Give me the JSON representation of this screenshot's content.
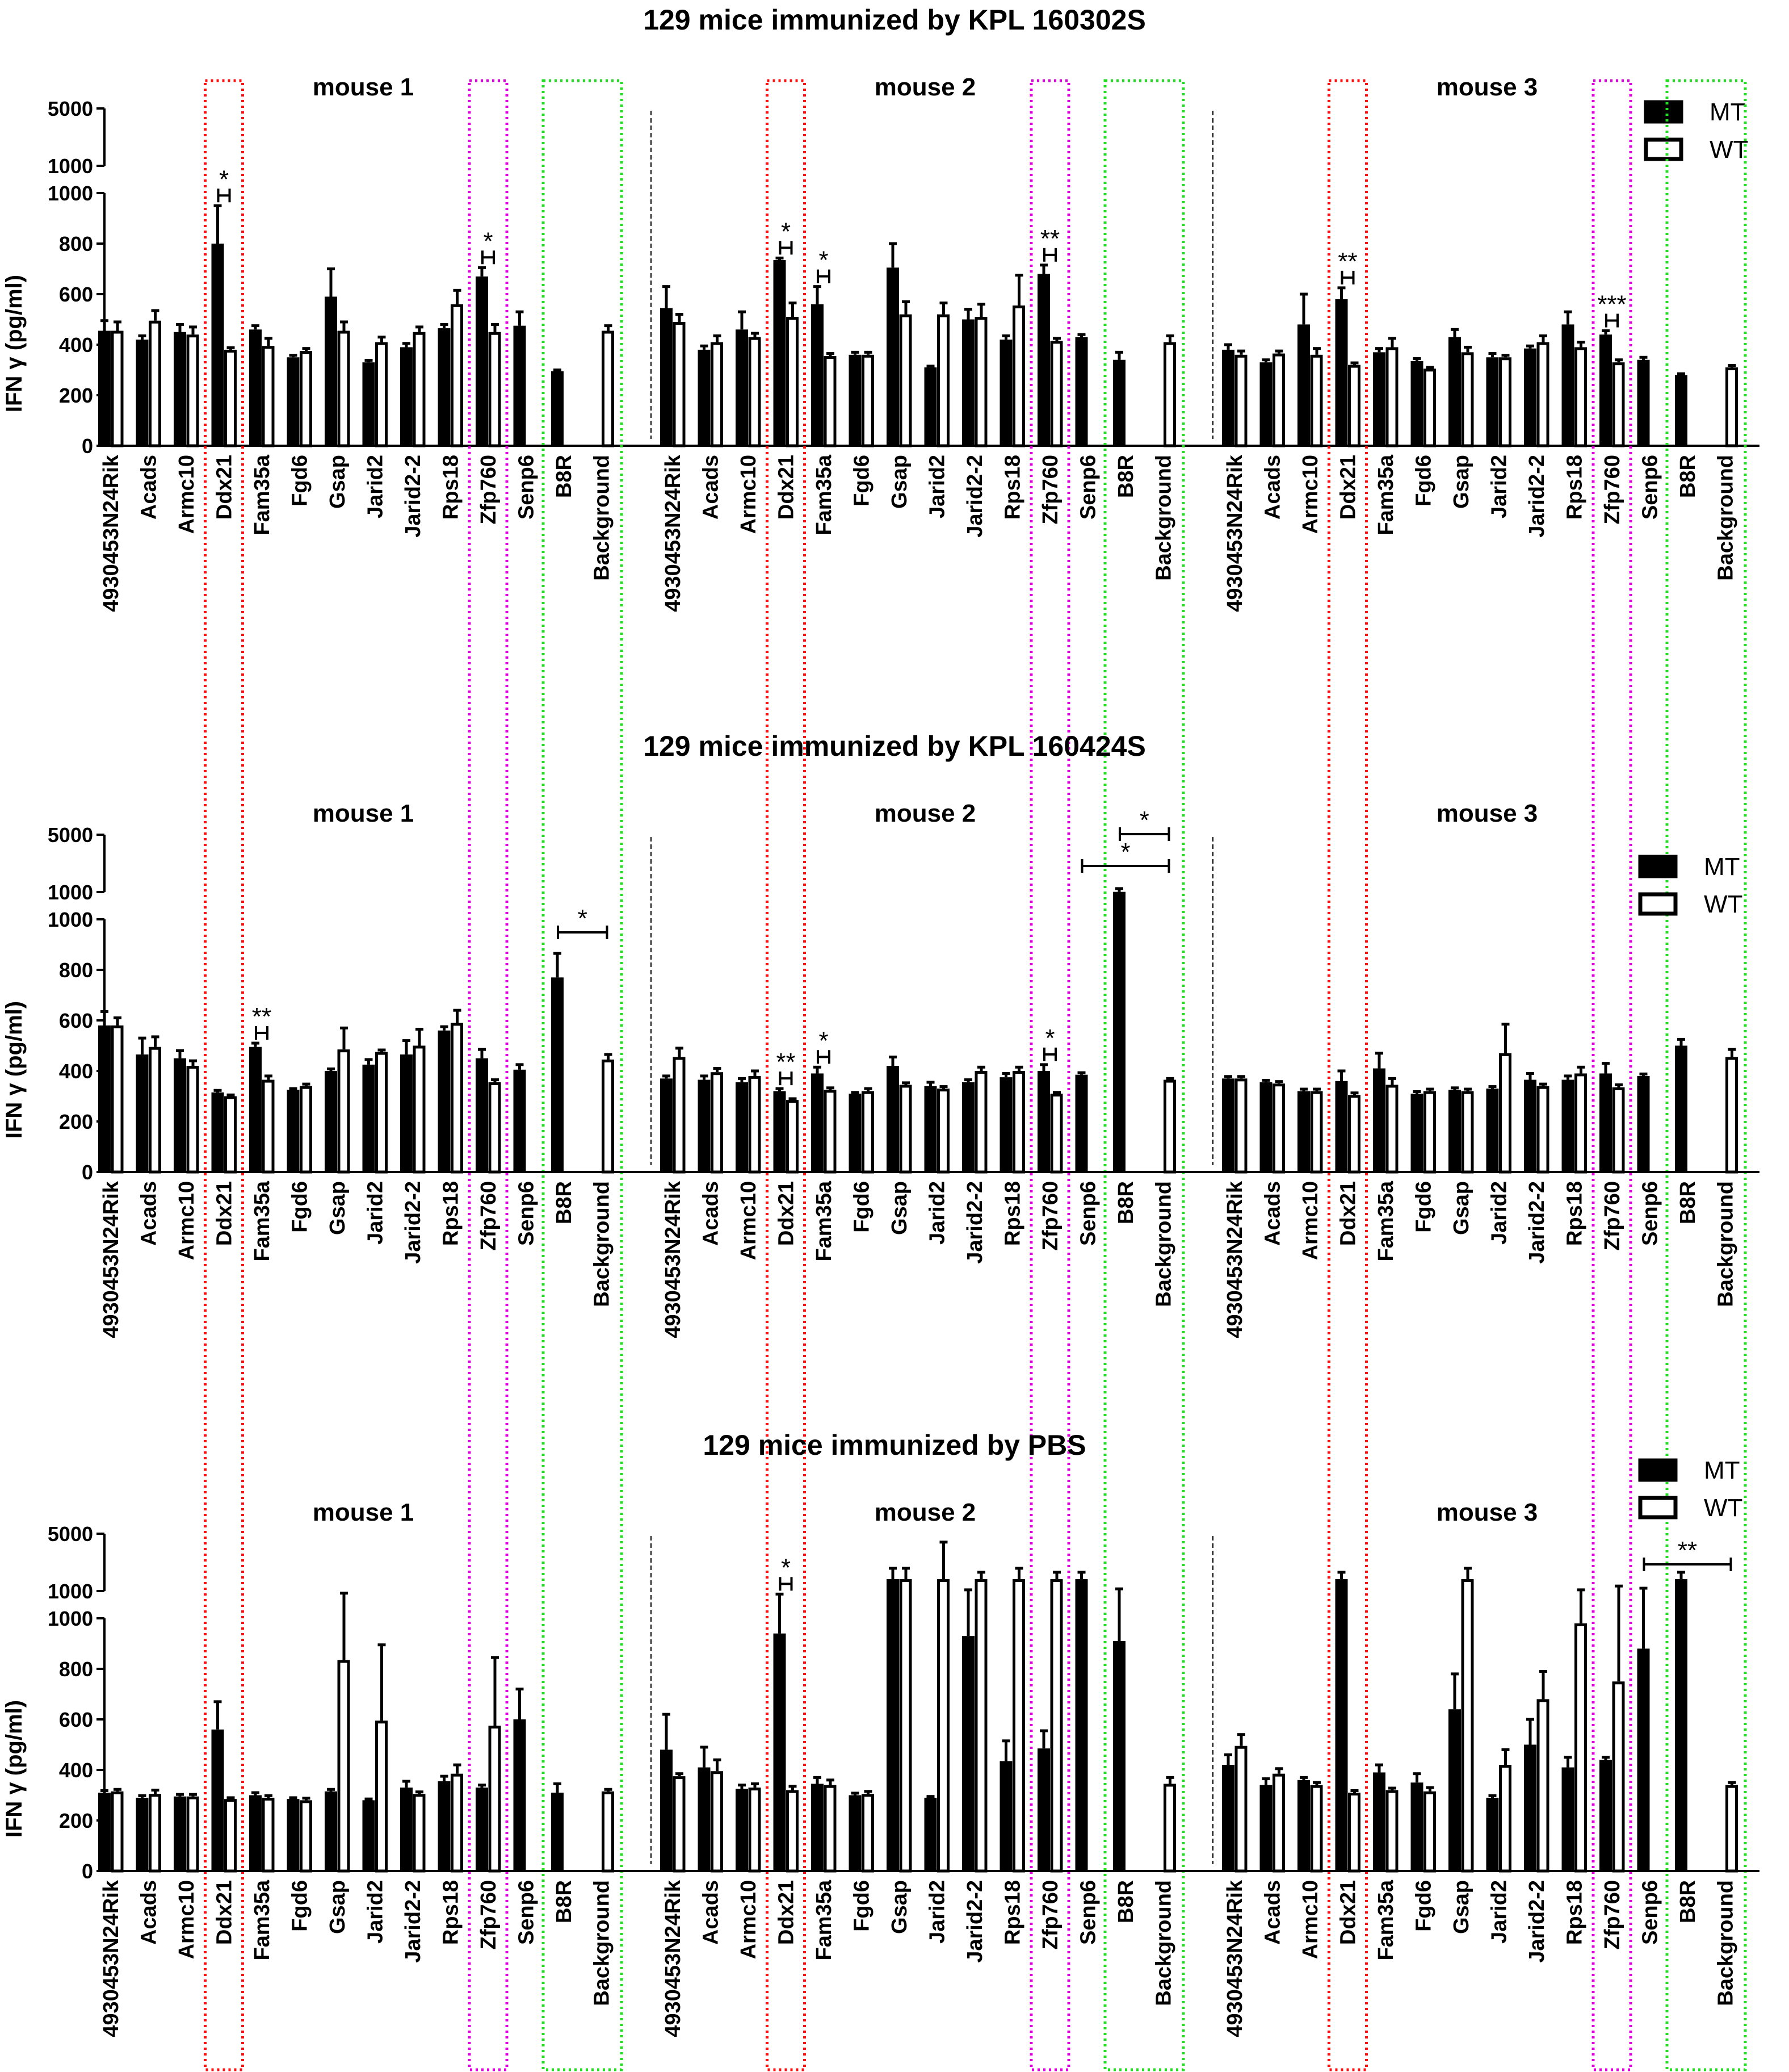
{
  "chart_data": [
    {
      "type": "bar",
      "title": "129 mice immunized by KPL 160302S",
      "ylabel": "IFN γ (pg/ml)",
      "yticks": [
        "0",
        "200",
        "400",
        "600",
        "800",
        "1000",
        "1000",
        "5000"
      ],
      "ylim": [
        0,
        5000
      ],
      "y_axis_break": [
        1000,
        1000
      ],
      "legend": [
        {
          "name": "MT",
          "fill": "#000000"
        },
        {
          "name": "WT",
          "fill": "#ffffff"
        }
      ],
      "categories": [
        "4930453N24Rik",
        "Acads",
        "Armc10",
        "Ddx21",
        "Fam35a",
        "Fgd6",
        "Gsap",
        "Jarid2",
        "Jarid2-2",
        "Rps18",
        "Zfp760",
        "Senp6",
        "B8R",
        "Background"
      ],
      "panels": [
        {
          "label": "mouse 1",
          "MT": [
            455,
            420,
            450,
            800,
            460,
            350,
            590,
            330,
            390,
            465,
            670,
            475,
            295,
            null
          ],
          "MT_err": [
            40,
            15,
            30,
            150,
            15,
            8,
            110,
            8,
            15,
            15,
            35,
            55,
            5,
            null
          ],
          "WT": [
            455,
            495,
            440,
            380,
            395,
            375,
            455,
            410,
            450,
            560,
            450,
            null,
            null,
            455
          ],
          "WT_err": [
            35,
            40,
            30,
            8,
            30,
            10,
            35,
            20,
            20,
            55,
            30,
            null,
            null,
            20
          ],
          "significance": [
            {
              "category": "Ddx21",
              "label": "*"
            },
            {
              "category": "Zfp760",
              "label": "*"
            }
          ]
        },
        {
          "label": "mouse 2",
          "MT": [
            545,
            380,
            460,
            735,
            560,
            360,
            705,
            310,
            500,
            420,
            680,
            430,
            340,
            null
          ],
          "MT_err": [
            85,
            15,
            70,
            8,
            70,
            10,
            95,
            5,
            40,
            15,
            35,
            10,
            30,
            null
          ],
          "WT": [
            490,
            410,
            430,
            510,
            355,
            360,
            520,
            520,
            510,
            555,
            415,
            null,
            null,
            410
          ],
          "WT_err": [
            30,
            25,
            15,
            55,
            10,
            10,
            50,
            45,
            50,
            120,
            10,
            null,
            null,
            25
          ],
          "significance": [
            {
              "category": "Ddx21",
              "label": "*"
            },
            {
              "category": "Fam35a",
              "label": "*"
            },
            {
              "category": "Zfp760",
              "label": "**"
            }
          ]
        },
        {
          "label": "mouse 3",
          "MT": [
            380,
            330,
            480,
            580,
            370,
            335,
            430,
            350,
            385,
            480,
            440,
            340,
            280,
            null
          ],
          "MT_err": [
            20,
            10,
            120,
            45,
            15,
            10,
            30,
            15,
            10,
            50,
            15,
            10,
            5,
            null
          ],
          "WT": [
            360,
            365,
            360,
            320,
            390,
            305,
            370,
            350,
            410,
            390,
            330,
            null,
            null,
            310
          ],
          "WT_err": [
            15,
            10,
            25,
            8,
            35,
            5,
            20,
            8,
            25,
            20,
            10,
            null,
            null,
            8
          ],
          "significance": [
            {
              "category": "Ddx21",
              "label": "**"
            },
            {
              "category": "Zfp760",
              "label": "***"
            }
          ]
        }
      ]
    },
    {
      "type": "bar",
      "title": "129 mice immunized by KPL 160424S",
      "ylabel": "IFN γ (pg/ml)",
      "yticks": [
        "0",
        "200",
        "400",
        "600",
        "800",
        "1000",
        "1000",
        "5000"
      ],
      "ylim": [
        0,
        5000
      ],
      "y_axis_break": [
        1000,
        1000
      ],
      "legend": [
        {
          "name": "MT",
          "fill": "#000000"
        },
        {
          "name": "WT",
          "fill": "#ffffff"
        }
      ],
      "categories": [
        "4930453N24Rik",
        "Acads",
        "Armc10",
        "Ddx21",
        "Fam35a",
        "Fgd6",
        "Gsap",
        "Jarid2",
        "Jarid2-2",
        "Rps18",
        "Zfp760",
        "Senp6",
        "B8R",
        "Background"
      ],
      "panels": [
        {
          "label": "mouse 1",
          "MT": [
            580,
            465,
            450,
            315,
            495,
            325,
            400,
            425,
            465,
            560,
            450,
            405,
            770,
            null
          ],
          "MT_err": [
            55,
            65,
            30,
            8,
            15,
            5,
            8,
            20,
            55,
            15,
            35,
            20,
            95,
            null
          ],
          "WT": [
            580,
            495,
            420,
            300,
            365,
            340,
            485,
            475,
            500,
            590,
            355,
            null,
            null,
            445
          ],
          "WT_err": [
            30,
            40,
            20,
            5,
            15,
            8,
            85,
            8,
            65,
            50,
            10,
            null,
            null,
            20
          ],
          "significance": [
            {
              "category": "Fam35a",
              "label": "**"
            },
            {
              "category": "B8R-Background",
              "label": "*"
            }
          ]
        },
        {
          "label": "mouse 2",
          "MT": [
            370,
            365,
            355,
            320,
            390,
            310,
            420,
            340,
            355,
            375,
            400,
            385,
            1100,
            null
          ],
          "MT_err": [
            10,
            15,
            15,
            10,
            25,
            5,
            35,
            15,
            10,
            15,
            25,
            8,
            100,
            null
          ],
          "WT": [
            455,
            395,
            380,
            285,
            325,
            320,
            345,
            330,
            400,
            400,
            310,
            null,
            null,
            365
          ],
          "WT_err": [
            35,
            15,
            20,
            5,
            8,
            10,
            8,
            8,
            15,
            15,
            5,
            null,
            null,
            5
          ],
          "significance": [
            {
              "category": "Ddx21",
              "label": "**"
            },
            {
              "category": "Fam35a",
              "label": "*"
            },
            {
              "category": "Zfp760",
              "label": "*"
            },
            {
              "category": "B8R-Background",
              "label": "*"
            },
            {
              "category": "Senp6-Background",
              "label": "*"
            }
          ]
        },
        {
          "label": "mouse 3",
          "MT": [
            370,
            355,
            320,
            360,
            410,
            310,
            325,
            330,
            365,
            365,
            390,
            380,
            500,
            null
          ],
          "MT_err": [
            8,
            8,
            8,
            40,
            60,
            8,
            8,
            8,
            25,
            15,
            40,
            8,
            25,
            null
          ],
          "WT": [
            370,
            350,
            320,
            305,
            345,
            320,
            320,
            470,
            340,
            390,
            335,
            null,
            null,
            455
          ],
          "WT_err": [
            8,
            8,
            8,
            8,
            25,
            8,
            8,
            115,
            8,
            25,
            10,
            null,
            null,
            30
          ],
          "significance": []
        }
      ]
    },
    {
      "type": "bar",
      "title": "129 mice immunized by PBS",
      "ylabel": "IFN γ (pg/ml)",
      "yticks": [
        "0",
        "200",
        "400",
        "600",
        "800",
        "1000",
        "1000",
        "5000"
      ],
      "ylim": [
        0,
        5000
      ],
      "y_axis_break": [
        1000,
        1000
      ],
      "legend": [
        {
          "name": "MT",
          "fill": "#000000"
        },
        {
          "name": "WT",
          "fill": "#ffffff"
        }
      ],
      "categories": [
        "4930453N24Rik",
        "Acads",
        "Armc10",
        "Ddx21",
        "Fam35a",
        "Fgd6",
        "Gsap",
        "Jarid2",
        "Jarid2-2",
        "Rps18",
        "Zfp760",
        "Senp6",
        "B8R",
        "Background"
      ],
      "panels": [
        {
          "label": "mouse 1",
          "MT": [
            310,
            290,
            295,
            560,
            300,
            285,
            315,
            280,
            330,
            355,
            330,
            600,
            310,
            null
          ],
          "MT_err": [
            8,
            8,
            8,
            110,
            10,
            5,
            8,
            5,
            25,
            20,
            10,
            120,
            35,
            null
          ],
          "WT": [
            315,
            305,
            295,
            285,
            290,
            280,
            835,
            595,
            305,
            385,
            575,
            null,
            null,
            315
          ],
          "WT_err": [
            8,
            15,
            8,
            5,
            8,
            8,
            200,
            300,
            8,
            35,
            270,
            null,
            null,
            8
          ],
          "significance": []
        },
        {
          "label": "mouse 2",
          "MT": [
            480,
            410,
            325,
            940,
            345,
            300,
            1500,
            290,
            930,
            435,
            485,
            1500,
            910,
            null
          ],
          "MT_err": [
            140,
            80,
            15,
            70,
            25,
            8,
            500,
            5,
            200,
            80,
            70,
            300,
            250,
            null
          ],
          "WT": [
            375,
            395,
            330,
            320,
            340,
            305,
            1500,
            1500,
            1500,
            1500,
            1500,
            null,
            null,
            345
          ],
          "WT_err": [
            10,
            45,
            15,
            15,
            20,
            10,
            500,
            2500,
            300,
            500,
            300,
            null,
            null,
            25
          ],
          "significance": [
            {
              "category": "Ddx21",
              "label": "*"
            }
          ]
        },
        {
          "label": "mouse 3",
          "MT": [
            420,
            340,
            360,
            1500,
            390,
            350,
            640,
            290,
            500,
            410,
            440,
            880,
            1500,
            null
          ],
          "MT_err": [
            40,
            25,
            10,
            300,
            30,
            35,
            140,
            8,
            100,
            40,
            10,
            300,
            300,
            null
          ],
          "WT": [
            495,
            385,
            340,
            310,
            320,
            315,
            1500,
            420,
            680,
            980,
            750,
            null,
            null,
            340
          ],
          "WT_err": [
            45,
            20,
            10,
            8,
            8,
            15,
            500,
            60,
            110,
            150,
            500,
            null,
            null,
            10
          ],
          "significance": [
            {
              "category": "Senp6-Background",
              "label": "**"
            }
          ]
        }
      ]
    }
  ]
}
